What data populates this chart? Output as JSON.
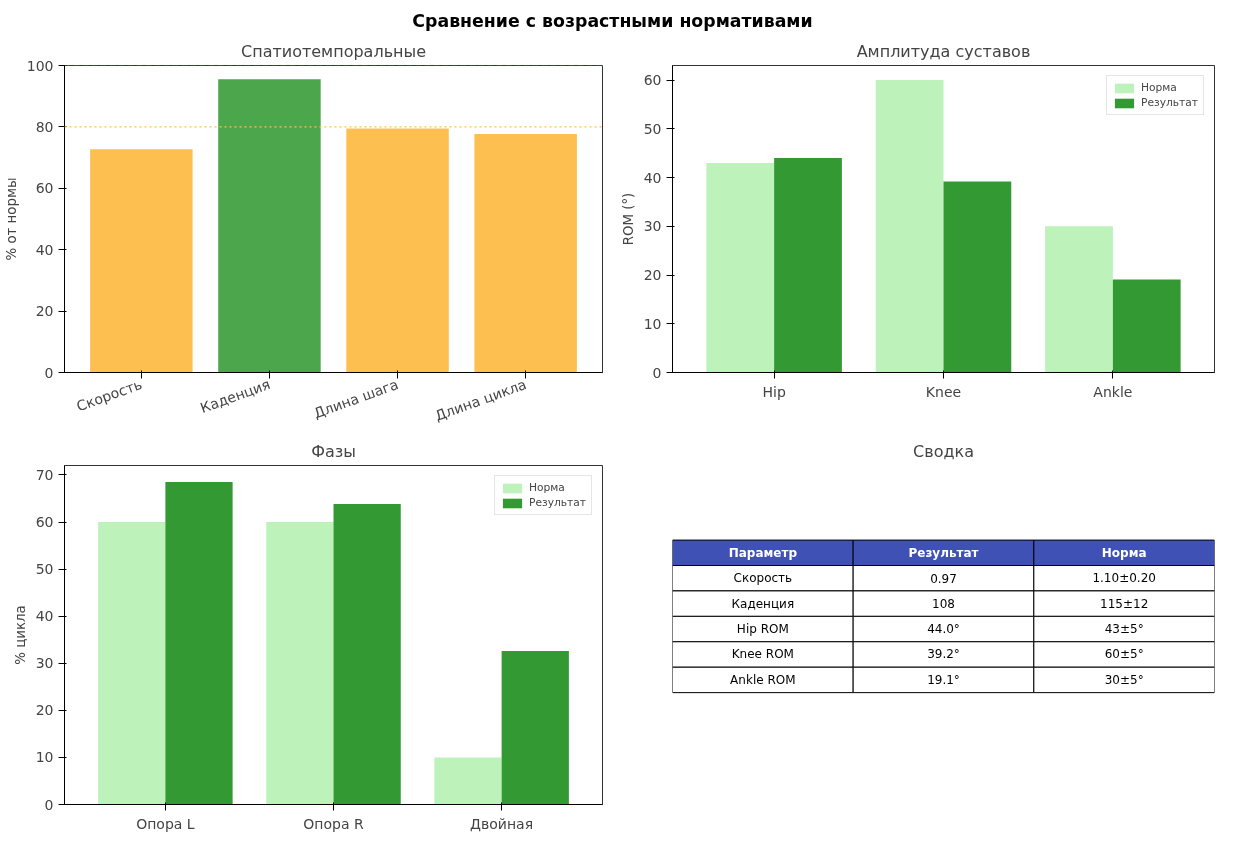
{
  "chart_data": [
    {
      "type": "other",
      "title": "Сравнение с возрастными нормативами"
    },
    {
      "type": "bar",
      "title": "Спатиотемпоральные",
      "ylabel": "% от нормы",
      "categories": [
        "Скорость",
        "Каденция",
        "Длина шага",
        "Длина цикла"
      ],
      "values": [
        72.7,
        95.5,
        79.5,
        77.7
      ],
      "colors": [
        "#fdbf4f",
        "#4ca64c",
        "#fdbf4f",
        "#fdbf4f"
      ],
      "ylim": [
        0,
        100
      ],
      "yticks": [
        0,
        20,
        40,
        60,
        80,
        100
      ],
      "grid": false,
      "legend": false,
      "ref_lines": [
        {
          "axis": "y",
          "value": 100,
          "color": "#2e7d32",
          "line_style": "dashed"
        },
        {
          "axis": "y",
          "value": 80,
          "color": "#fdbf4f",
          "line_style": "dotted"
        }
      ]
    },
    {
      "type": "bar",
      "title": "Амплитуда суставов",
      "ylabel": "ROM (°)",
      "categories": [
        "Hip",
        "Knee",
        "Ankle"
      ],
      "ylim": [
        0,
        63
      ],
      "yticks": [
        0,
        10,
        20,
        30,
        40,
        50,
        60
      ],
      "grid": false,
      "legend": "top right",
      "series": [
        {
          "name": "Норма",
          "color": "#bdf2bb",
          "values": [
            43,
            60,
            30
          ]
        },
        {
          "name": "Результат",
          "color": "#339933",
          "values": [
            44.0,
            39.2,
            19.1
          ]
        }
      ]
    },
    {
      "type": "bar",
      "title": "Фазы",
      "ylabel": "% цикла",
      "categories": [
        "Опора L",
        "Опора R",
        "Двойная"
      ],
      "ylim": [
        0,
        72
      ],
      "yticks": [
        0,
        10,
        20,
        30,
        40,
        50,
        60,
        70
      ],
      "grid": false,
      "legend": "top right",
      "series": [
        {
          "name": "Норма",
          "color": "#bdf2bb",
          "values": [
            60,
            60,
            10
          ]
        },
        {
          "name": "Результат",
          "color": "#339933",
          "values": [
            68.5,
            63.8,
            32.6
          ]
        }
      ]
    },
    {
      "type": "other",
      "title": "Сводка",
      "categories": [
        "Параметр",
        "Результат",
        "Норма"
      ],
      "annotations": [
        "Скорость",
        "0.97",
        "1.10±0.20",
        "Каденция",
        "108",
        "115±12",
        "Hip ROM",
        "44.0°",
        "43±5°",
        "Knee ROM",
        "39.2°",
        "60±5°",
        "Ankle ROM",
        "19.1°",
        "30±5°"
      ]
    }
  ]
}
